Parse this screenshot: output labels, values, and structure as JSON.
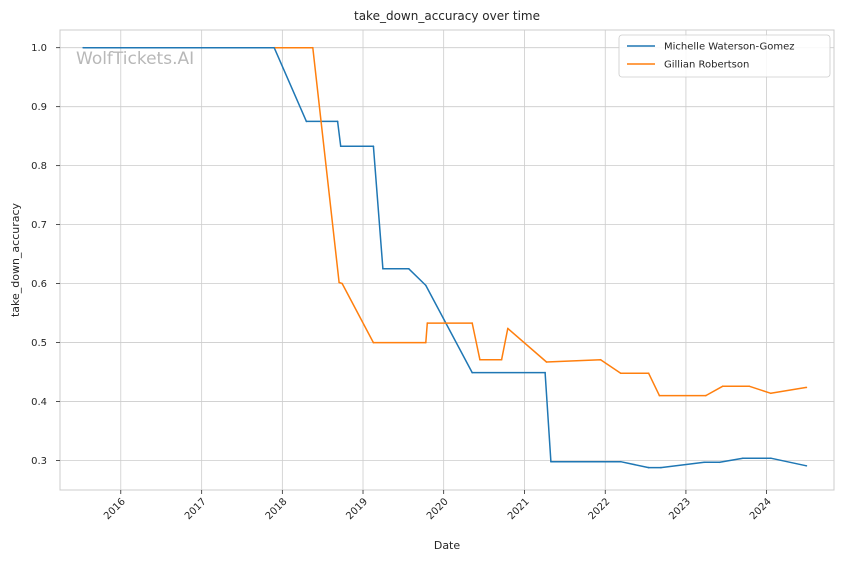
{
  "chart_data": {
    "type": "line",
    "title": "take_down_accuracy over time",
    "xlabel": "Date",
    "ylabel": "take_down_accuracy",
    "xlim": [
      "2015-04-01",
      "2024-11-01"
    ],
    "ylim": [
      0.25,
      1.03
    ],
    "x_ticks": [
      "2016-01-01",
      "2017-01-01",
      "2018-01-01",
      "2019-01-01",
      "2020-01-01",
      "2021-01-01",
      "2022-01-01",
      "2023-01-01",
      "2024-01-01"
    ],
    "x_tick_labels": [
      "2016",
      "2017",
      "2018",
      "2019",
      "2020",
      "2021",
      "2022",
      "2023",
      "2024"
    ],
    "y_ticks": [
      0.3,
      0.4,
      0.5,
      0.6,
      0.7,
      0.8,
      0.9,
      1.0
    ],
    "y_tick_labels": [
      "0.3",
      "0.4",
      "0.5",
      "0.6",
      "0.7",
      "0.8",
      "0.9",
      "1.0"
    ],
    "grid": true,
    "legend_position": "top-right",
    "watermark": "WolfTickets.AI",
    "series": [
      {
        "name": "Michelle Waterson-Gomez",
        "color": "#1f77b4",
        "points": [
          [
            "2015-07-15",
            1.0
          ],
          [
            "2017-11-25",
            1.0
          ],
          [
            "2018-04-20",
            0.875
          ],
          [
            "2018-09-08",
            0.875
          ],
          [
            "2018-09-22",
            0.833
          ],
          [
            "2019-02-17",
            0.833
          ],
          [
            "2019-04-01",
            0.625
          ],
          [
            "2019-07-27",
            0.625
          ],
          [
            "2019-10-12",
            0.597
          ],
          [
            "2020-05-09",
            0.449
          ],
          [
            "2021-04-04",
            0.449
          ],
          [
            "2021-04-30",
            0.298
          ],
          [
            "2022-03-12",
            0.298
          ],
          [
            "2022-07-16",
            0.288
          ],
          [
            "2022-09-10",
            0.288
          ],
          [
            "2023-03-25",
            0.297
          ],
          [
            "2023-06-03",
            0.297
          ],
          [
            "2023-09-16",
            0.304
          ],
          [
            "2024-01-20",
            0.304
          ],
          [
            "2024-06-29",
            0.291
          ]
        ]
      },
      {
        "name": "Gillian Robertson",
        "color": "#ff7f0e",
        "points": [
          [
            "2017-12-01",
            1.0
          ],
          [
            "2018-05-19",
            1.0
          ],
          [
            "2018-09-15",
            0.602
          ],
          [
            "2018-09-29",
            0.6
          ],
          [
            "2019-02-17",
            0.5
          ],
          [
            "2019-10-12",
            0.5
          ],
          [
            "2019-10-19",
            0.533
          ],
          [
            "2020-05-09",
            0.533
          ],
          [
            "2020-06-13",
            0.471
          ],
          [
            "2020-09-19",
            0.471
          ],
          [
            "2020-10-17",
            0.524
          ],
          [
            "2021-04-10",
            0.467
          ],
          [
            "2021-12-11",
            0.471
          ],
          [
            "2022-03-12",
            0.448
          ],
          [
            "2022-07-16",
            0.448
          ],
          [
            "2022-09-03",
            0.41
          ],
          [
            "2023-04-01",
            0.41
          ],
          [
            "2023-06-17",
            0.426
          ],
          [
            "2023-10-14",
            0.426
          ],
          [
            "2024-01-20",
            0.414
          ],
          [
            "2024-06-29",
            0.424
          ]
        ]
      }
    ]
  }
}
